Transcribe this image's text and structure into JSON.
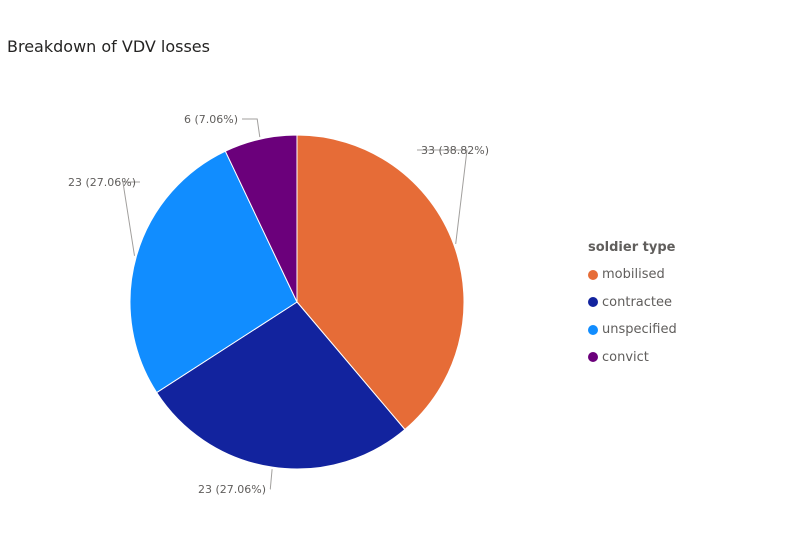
{
  "chart_data": {
    "type": "pie",
    "title": "Breakdown of VDV losses",
    "legend_title": "soldier type",
    "legend_position": "right",
    "slices": [
      {
        "name": "mobilised",
        "value": 33,
        "label": "33 (38.82%)",
        "color": "#E66C37"
      },
      {
        "name": "contractee",
        "value": 23,
        "label": "23 (27.06%)",
        "color": "#12239E"
      },
      {
        "name": "unspecified",
        "value": 23,
        "label": "23 (27.06%)",
        "color": "#118DFF"
      },
      {
        "name": "convict",
        "value": 6,
        "label": "6 (7.06%)",
        "color": "#6B007B"
      }
    ]
  }
}
